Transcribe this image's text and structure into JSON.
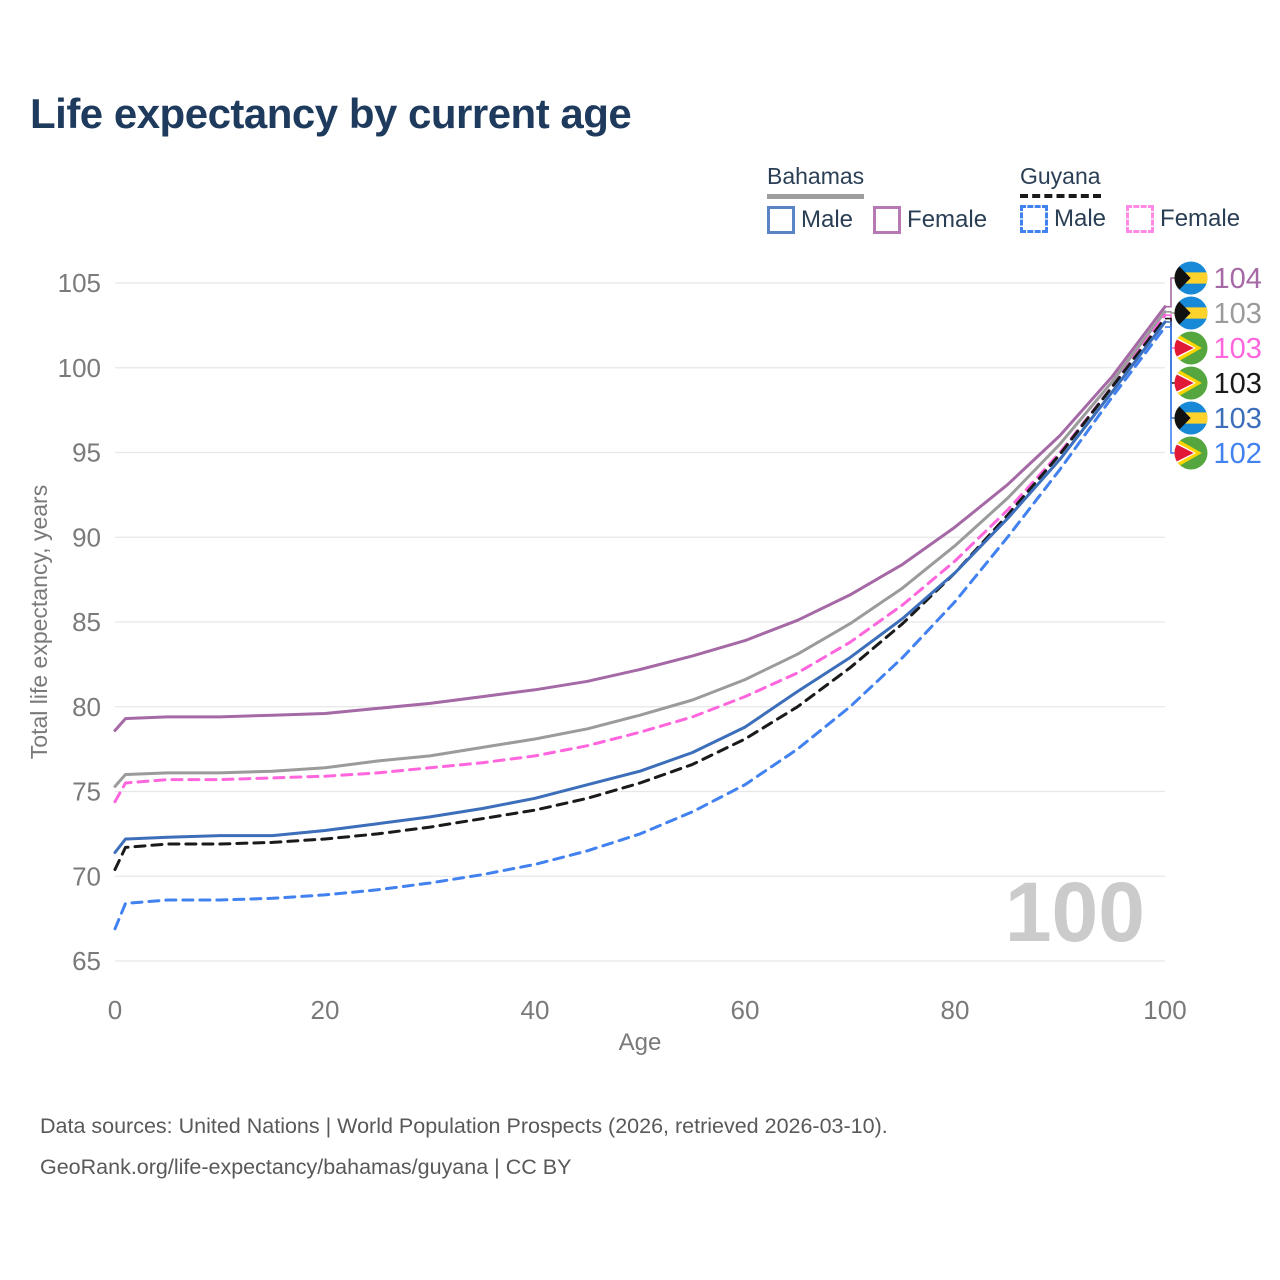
{
  "title": "Life expectancy by current age",
  "legend": {
    "groups": [
      {
        "country": "Bahamas",
        "underline_style": "solid",
        "underline_color": "#9e9e9e",
        "items": [
          {
            "label": "Male",
            "style": "solid",
            "color": "#3c6eba"
          },
          {
            "label": "Female",
            "style": "solid",
            "color": "#a569a5"
          }
        ]
      },
      {
        "country": "Guyana",
        "underline_style": "dashed",
        "underline_color": "#1a1a1a",
        "items": [
          {
            "label": "Male",
            "style": "dashed",
            "color": "#4181f0"
          },
          {
            "label": "Female",
            "style": "dashed",
            "color": "#ff66dd"
          }
        ]
      }
    ]
  },
  "watermark": "100",
  "source": {
    "line1": "Data sources: United Nations | World Population Prospects (2026, retrieved 2026-03-10).",
    "line2": "GeoRank.org/life-expectancy/bahamas/guyana | CC BY"
  },
  "chart_data": {
    "type": "line",
    "title": "Life expectancy by current age",
    "xlabel": "Age",
    "ylabel": "Total life expectancy, years",
    "xlim": [
      0,
      100
    ],
    "ylim": [
      65,
      105
    ],
    "x_ticks": [
      0,
      20,
      40,
      60,
      80,
      100
    ],
    "y_ticks": [
      65,
      70,
      75,
      80,
      85,
      90,
      95,
      100,
      105
    ],
    "grid": "horizontal-only",
    "legend_position": "top-right",
    "x": [
      0,
      1,
      5,
      10,
      15,
      20,
      25,
      30,
      35,
      40,
      45,
      50,
      55,
      60,
      65,
      70,
      75,
      80,
      85,
      90,
      95,
      100
    ],
    "series": [
      {
        "name": "Bahamas Female",
        "country": "Bahamas",
        "sex": "Female",
        "flag": "bahamas-flag-icon",
        "color": "#a569a5",
        "dash": false,
        "end_label": "104",
        "values": [
          78.6,
          79.3,
          79.4,
          79.4,
          79.5,
          79.6,
          79.9,
          80.2,
          80.6,
          81.0,
          81.5,
          82.2,
          83.0,
          83.9,
          85.1,
          86.6,
          88.4,
          90.6,
          93.1,
          96.0,
          99.5,
          103.6
        ]
      },
      {
        "name": "Bahamas",
        "country": "Bahamas",
        "sex": "Both",
        "flag": "bahamas-flag-icon",
        "color": "#9b9b9b",
        "dash": false,
        "end_label": "103",
        "values": [
          75.3,
          76.0,
          76.1,
          76.1,
          76.2,
          76.4,
          76.8,
          77.1,
          77.6,
          78.1,
          78.7,
          79.5,
          80.4,
          81.6,
          83.1,
          84.9,
          87.0,
          89.5,
          92.3,
          95.5,
          99.2,
          103.3
        ]
      },
      {
        "name": "Guyana Female",
        "country": "Guyana",
        "sex": "Female",
        "flag": "guyana-flag-icon",
        "color": "#ff66dd",
        "dash": true,
        "end_label": "103",
        "values": [
          74.4,
          75.5,
          75.7,
          75.7,
          75.8,
          75.9,
          76.1,
          76.4,
          76.7,
          77.1,
          77.7,
          78.5,
          79.4,
          80.6,
          82.0,
          83.8,
          86.0,
          88.6,
          91.6,
          95.0,
          98.9,
          103.1
        ]
      },
      {
        "name": "Guyana",
        "country": "Guyana",
        "sex": "Both",
        "flag": "guyana-flag-icon",
        "color": "#1a1a1a",
        "dash": true,
        "end_label": "103",
        "values": [
          70.4,
          71.7,
          71.9,
          71.9,
          72.0,
          72.2,
          72.5,
          72.9,
          73.4,
          73.9,
          74.6,
          75.5,
          76.6,
          78.1,
          80.0,
          82.3,
          84.9,
          87.9,
          91.3,
          94.9,
          98.9,
          102.9
        ]
      },
      {
        "name": "Bahamas Male",
        "country": "Bahamas",
        "sex": "Male",
        "flag": "bahamas-flag-icon",
        "color": "#3c6eba",
        "dash": false,
        "end_label": "103",
        "values": [
          71.4,
          72.2,
          72.3,
          72.4,
          72.4,
          72.7,
          73.1,
          73.5,
          74.0,
          74.6,
          75.4,
          76.2,
          77.3,
          78.8,
          80.9,
          82.9,
          85.2,
          87.9,
          91.1,
          94.6,
          98.6,
          102.7
        ]
      },
      {
        "name": "Guyana Male",
        "country": "Guyana",
        "sex": "Male",
        "flag": "guyana-flag-icon",
        "color": "#4181f0",
        "dash": true,
        "end_label": "102",
        "values": [
          66.9,
          68.4,
          68.6,
          68.6,
          68.7,
          68.9,
          69.2,
          69.6,
          70.1,
          70.7,
          71.5,
          72.5,
          73.8,
          75.4,
          77.5,
          80.0,
          82.9,
          86.2,
          90.0,
          94.0,
          98.3,
          102.4
        ]
      }
    ],
    "flag_colors": {
      "bahamas": {
        "aqua": "#1789d6",
        "gold": "#ffd32b",
        "black": "#111111"
      },
      "guyana": {
        "green": "#55a63e",
        "yellow": "#ffd500",
        "red": "#e11937",
        "white": "#ffffff"
      }
    },
    "grid_color": "#e7e7e7",
    "axis_text_color": "#7a7a7a"
  }
}
